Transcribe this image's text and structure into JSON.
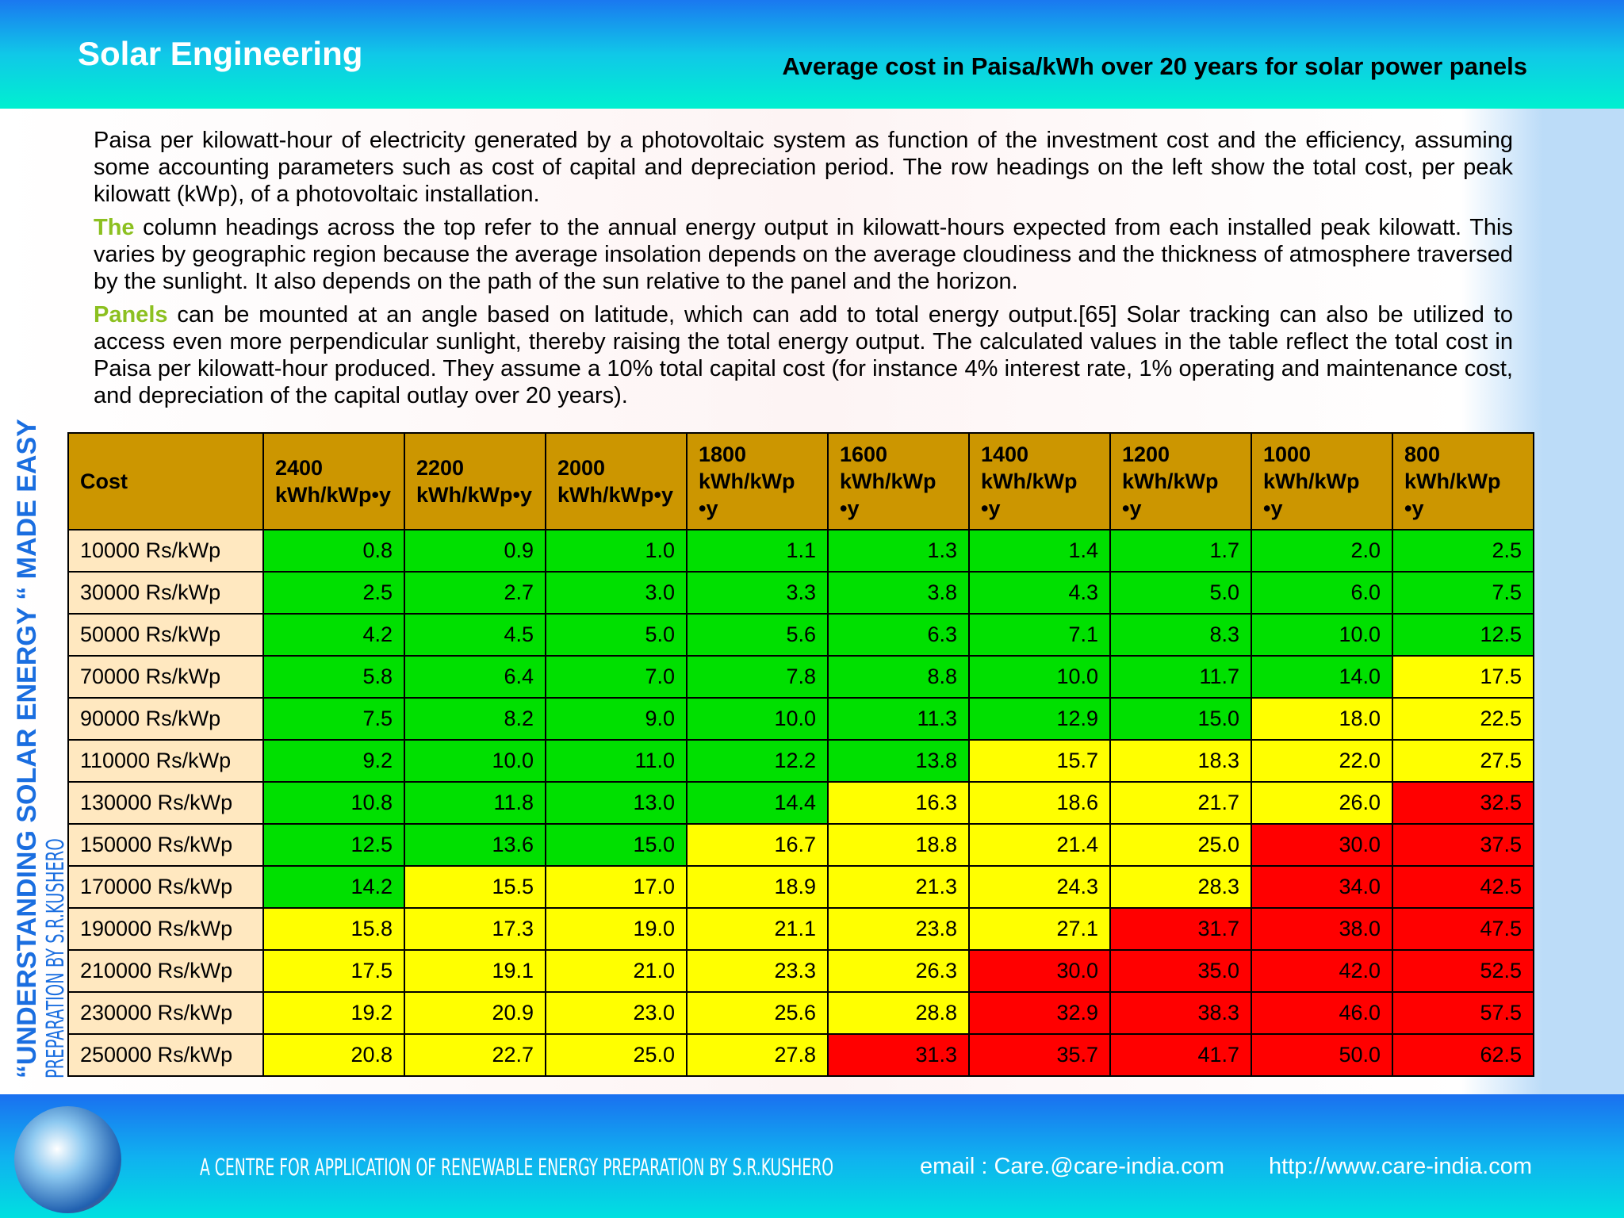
{
  "header": {
    "title": "Solar Engineering",
    "subtitle": "Average cost in Paisa/kWh over 20 years for solar power panels"
  },
  "paragraphs": [
    {
      "lead": "",
      "text": "Paisa per kilowatt-hour of electricity generated by a photovoltaic system as function of the investment cost and the efficiency, assuming some accounting parameters such as cost of capital and depreciation period. The row headings on the left show the total cost, per peak kilowatt (kWp), of a photovoltaic installation."
    },
    {
      "lead": "The",
      "text": " column headings across the top refer to the annual energy output in kilowatt-hours expected from each installed peak kilowatt. This varies by geographic region because the average insolation depends on the average cloudiness and the thickness of atmosphere traversed by the sunlight. It also depends on the path of the sun relative to the panel and the horizon."
    },
    {
      "lead": "Panels",
      "text": " can be mounted at an angle based on latitude, which can add to total energy output.[65] Solar tracking can also be utilized to access even more perpendicular sunlight, thereby raising the total energy output. The calculated values in the table reflect the total cost in Paisa per kilowatt-hour produced. They assume a 10% total capital cost (for instance 4% interest rate, 1% operating and maintenance cost, and depreciation of the capital outlay over 20 years)."
    }
  ],
  "table": {
    "header": [
      "Cost",
      "2400 kWh/kWp•y",
      "2200 kWh/kWp•y",
      "2000 kWh/kWp•y",
      "1800 kWh/kWp •y",
      "1600 kWh/kWp •y",
      "1400 kWh/kWp •y",
      "1200 kWh/kWp •y",
      "1000 kWh/kWp •y",
      "800 kWh/kWp •y"
    ],
    "rows": [
      [
        "10000 Rs/kWp",
        "0.8",
        "0.9",
        "1.0",
        "1.1",
        "1.3",
        "1.4",
        "1.7",
        "2.0",
        "2.5"
      ],
      [
        "30000 Rs/kWp",
        "2.5",
        "2.7",
        "3.0",
        "3.3",
        "3.8",
        "4.3",
        "5.0",
        "6.0",
        "7.5"
      ],
      [
        "50000 Rs/kWp",
        "4.2",
        "4.5",
        "5.0",
        "5.6",
        "6.3",
        "7.1",
        "8.3",
        "10.0",
        "12.5"
      ],
      [
        "70000 Rs/kWp",
        "5.8",
        "6.4",
        "7.0",
        "7.8",
        "8.8",
        "10.0",
        "11.7",
        "14.0",
        "17.5"
      ],
      [
        "90000 Rs/kWp",
        "7.5",
        "8.2",
        "9.0",
        "10.0",
        "11.3",
        "12.9",
        "15.0",
        "18.0",
        "22.5"
      ],
      [
        "110000 Rs/kWp",
        "9.2",
        "10.0",
        "11.0",
        "12.2",
        "13.8",
        "15.7",
        "18.3",
        "22.0",
        "27.5"
      ],
      [
        "130000 Rs/kWp",
        "10.8",
        "11.8",
        "13.0",
        "14.4",
        "16.3",
        "18.6",
        "21.7",
        "26.0",
        "32.5"
      ],
      [
        "150000 Rs/kWp",
        "12.5",
        "13.6",
        "15.0",
        "16.7",
        "18.8",
        "21.4",
        "25.0",
        "30.0",
        "37.5"
      ],
      [
        "170000 Rs/kWp",
        "14.2",
        "15.5",
        "17.0",
        "18.9",
        "21.3",
        "24.3",
        "28.3",
        "34.0",
        "42.5"
      ],
      [
        "190000 Rs/kWp",
        "15.8",
        "17.3",
        "19.0",
        "21.1",
        "23.8",
        "27.1",
        "31.7",
        "38.0",
        "47.5"
      ],
      [
        "210000 Rs/kWp",
        "17.5",
        "19.1",
        "21.0",
        "23.3",
        "26.3",
        "30.0",
        "35.0",
        "42.0",
        "52.5"
      ],
      [
        "230000 Rs/kWp",
        "19.2",
        "20.9",
        "23.0",
        "25.6",
        "28.8",
        "32.9",
        "38.3",
        "46.0",
        "57.5"
      ],
      [
        "250000 Rs/kWp",
        "20.8",
        "22.7",
        "25.0",
        "27.8",
        "31.3",
        "35.7",
        "41.7",
        "50.0",
        "62.5"
      ]
    ],
    "cell_colors": [
      [
        "#00e000",
        "#00e000",
        "#00e000",
        "#00e000",
        "#00e000",
        "#00e000",
        "#00e000",
        "#00e000",
        "#00e000"
      ],
      [
        "#00e000",
        "#00e000",
        "#00e000",
        "#00e000",
        "#00e000",
        "#00e000",
        "#00e000",
        "#00e000",
        "#00e000"
      ],
      [
        "#00e000",
        "#00e000",
        "#00e000",
        "#00e000",
        "#00e000",
        "#00e000",
        "#00e000",
        "#00e000",
        "#00e000"
      ],
      [
        "#00e000",
        "#00e000",
        "#00e000",
        "#00e000",
        "#00e000",
        "#00e000",
        "#00e000",
        "#00e000",
        "#ffff00"
      ],
      [
        "#00e000",
        "#00e000",
        "#00e000",
        "#00e000",
        "#00e000",
        "#00e000",
        "#00e000",
        "#ffff00",
        "#ffff00"
      ],
      [
        "#00e000",
        "#00e000",
        "#00e000",
        "#00e000",
        "#00e000",
        "#ffff00",
        "#ffff00",
        "#ffff00",
        "#ffff00"
      ],
      [
        "#00e000",
        "#00e000",
        "#00e000",
        "#00e000",
        "#ffff00",
        "#ffff00",
        "#ffff00",
        "#ffff00",
        "#ff0000"
      ],
      [
        "#00e000",
        "#00e000",
        "#00e000",
        "#ffff00",
        "#ffff00",
        "#ffff00",
        "#ffff00",
        "#ff0000",
        "#ff0000"
      ],
      [
        "#00e000",
        "#ffff00",
        "#ffff00",
        "#ffff00",
        "#ffff00",
        "#ffff00",
        "#ffff00",
        "#ff0000",
        "#ff0000"
      ],
      [
        "#ffff00",
        "#ffff00",
        "#ffff00",
        "#ffff00",
        "#ffff00",
        "#ffff00",
        "#ff0000",
        "#ff0000",
        "#ff0000"
      ],
      [
        "#ffff00",
        "#ffff00",
        "#ffff00",
        "#ffff00",
        "#ffff00",
        "#ff0000",
        "#ff0000",
        "#ff0000",
        "#ff0000"
      ],
      [
        "#ffff00",
        "#ffff00",
        "#ffff00",
        "#ffff00",
        "#ffff00",
        "#ff0000",
        "#ff0000",
        "#ff0000",
        "#ff0000"
      ],
      [
        "#ffff00",
        "#ffff00",
        "#ffff00",
        "#ffff00",
        "#ff0000",
        "#ff0000",
        "#ff0000",
        "#ff0000",
        "#ff0000"
      ]
    ]
  },
  "side": {
    "title": "“UNDERSTANDING SOLAR ENERGY “ MADE  EASY",
    "credit": "PREPARATION BY S.R.KUSHERO"
  },
  "footer": {
    "centre": "A CENTRE FOR APPLICATION OF RENEWABLE ENERGY  PREPARATION BY S.R.KUSHERO",
    "email": "email  : Care.@care-india.com",
    "url": "http://www.care-india.com"
  }
}
